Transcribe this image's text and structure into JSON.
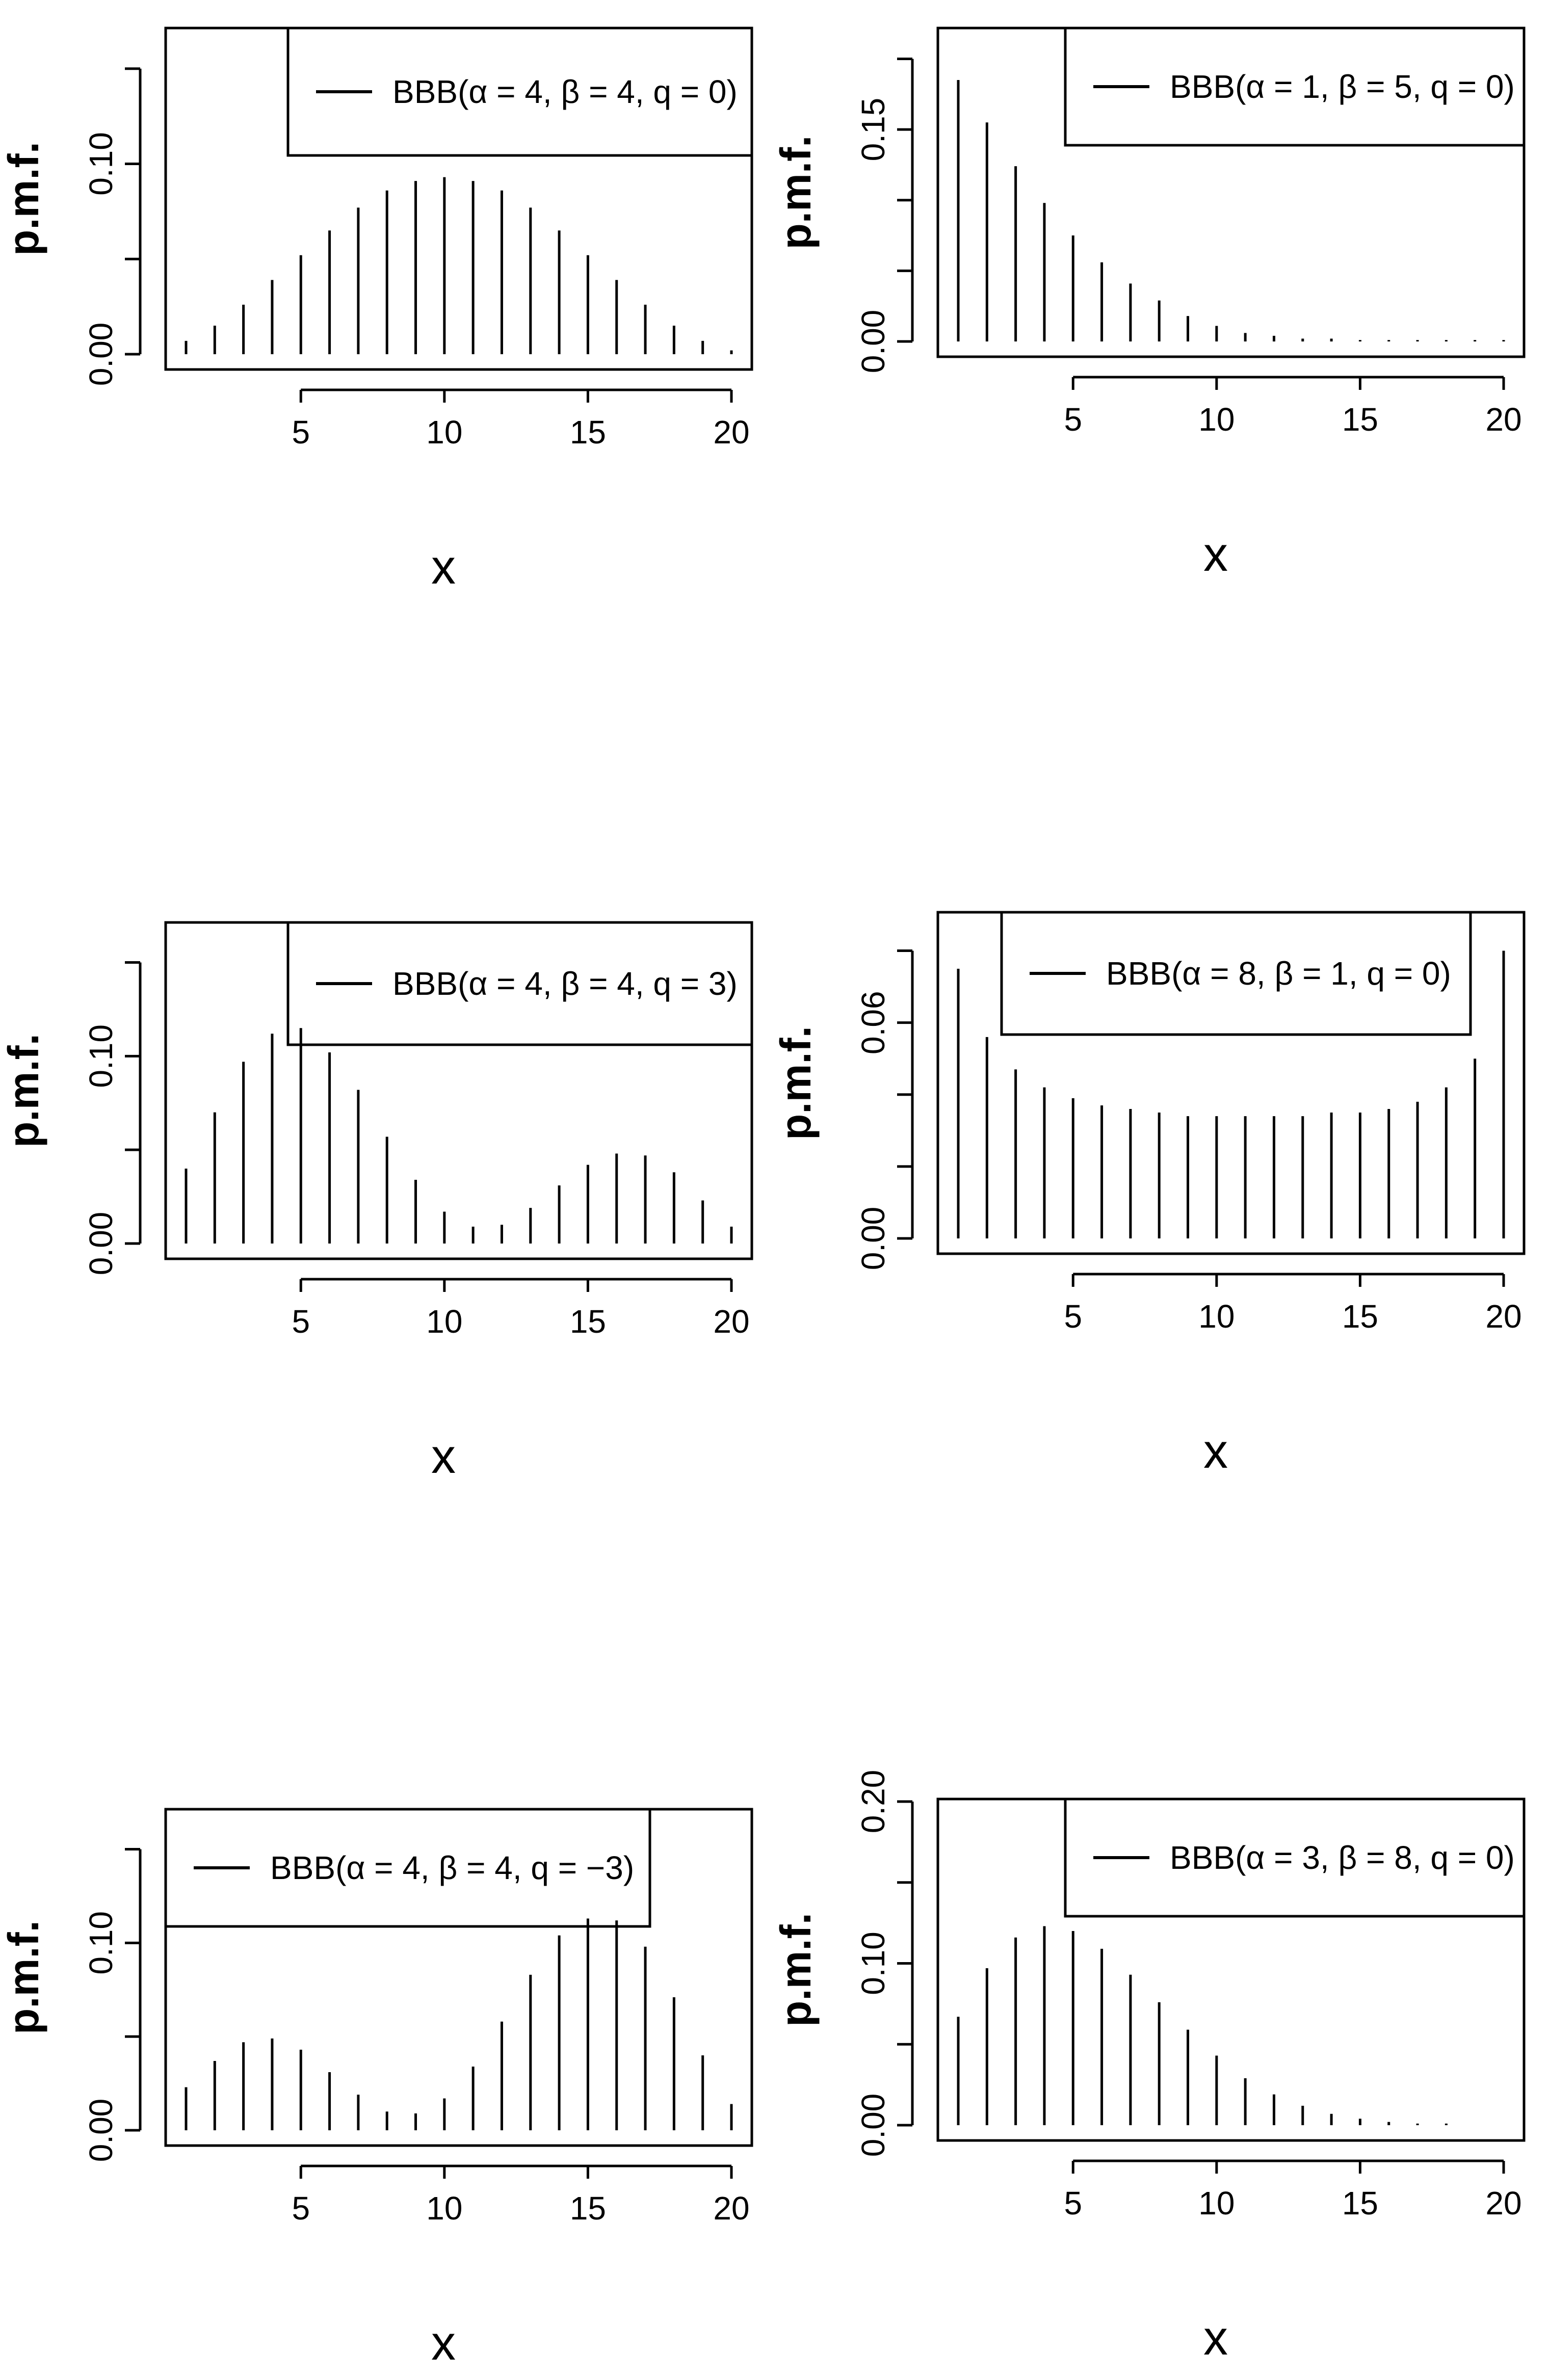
{
  "chart_data": [
    {
      "type": "bar",
      "x": [
        1,
        2,
        3,
        4,
        5,
        6,
        7,
        8,
        9,
        10,
        11,
        12,
        13,
        14,
        15,
        16,
        17,
        18,
        19,
        20
      ],
      "values": [
        0.007,
        0.015,
        0.026,
        0.039,
        0.052,
        0.065,
        0.077,
        0.086,
        0.091,
        0.093,
        0.091,
        0.086,
        0.077,
        0.065,
        0.052,
        0.039,
        0.026,
        0.015,
        0.007,
        0.002
      ],
      "xlabel": "x",
      "ylabel": "p.m.f.",
      "ylim": [
        0,
        0.17
      ],
      "yticks": [
        0,
        0.05,
        0.1,
        0.15
      ],
      "yticklabels": [
        "0.00",
        "0.10"
      ],
      "xticks": [
        "5",
        "10",
        "15",
        "20"
      ],
      "legend": {
        "label": "BBB(α = 4, β = 4, q = 0)",
        "position": "top-right"
      }
    },
    {
      "type": "bar",
      "x": [
        1,
        2,
        3,
        4,
        5,
        6,
        7,
        8,
        9,
        10,
        11,
        12,
        13,
        14,
        15,
        16,
        17,
        18,
        19,
        20
      ],
      "values": [
        0.185,
        0.155,
        0.124,
        0.098,
        0.075,
        0.056,
        0.041,
        0.029,
        0.018,
        0.011,
        0.006,
        0.004,
        0.002,
        0.002,
        0.001,
        0.001,
        0.001,
        0.001,
        0.001,
        0.001
      ],
      "xlabel": "x",
      "ylabel": "p.m.f.",
      "ylim": [
        0,
        0.22
      ],
      "yticks": [
        0,
        0.05,
        0.1,
        0.15,
        0.2
      ],
      "yticklabels": [
        "0.00",
        "0.15"
      ],
      "xticks": [
        "5",
        "10",
        "15",
        "20"
      ],
      "legend": {
        "label": "BBB(α = 1, β = 5, q = 0)",
        "position": "top-right"
      }
    },
    {
      "type": "bar",
      "x": [
        1,
        2,
        3,
        4,
        5,
        6,
        7,
        8,
        9,
        10,
        11,
        12,
        13,
        14,
        15,
        16,
        17,
        18,
        19,
        20
      ],
      "values": [
        0.04,
        0.07,
        0.097,
        0.112,
        0.115,
        0.102,
        0.082,
        0.057,
        0.034,
        0.017,
        0.009,
        0.01,
        0.019,
        0.031,
        0.042,
        0.048,
        0.047,
        0.038,
        0.023,
        0.009
      ],
      "xlabel": "x",
      "ylabel": "p.m.f.",
      "ylim": [
        0,
        0.17
      ],
      "yticks": [
        0,
        0.05,
        0.1,
        0.15
      ],
      "yticklabels": [
        "0.00",
        "0.10"
      ],
      "xticks": [
        "5",
        "10",
        "15",
        "20"
      ],
      "legend": {
        "label": "BBB(α = 4, β = 4, q = 3)",
        "position": "top-right"
      }
    },
    {
      "type": "bar",
      "x": [
        1,
        2,
        3,
        4,
        5,
        6,
        7,
        8,
        9,
        10,
        11,
        12,
        13,
        14,
        15,
        16,
        17,
        18,
        19,
        20
      ],
      "values": [
        0.075,
        0.056,
        0.047,
        0.042,
        0.039,
        0.037,
        0.036,
        0.035,
        0.034,
        0.034,
        0.034,
        0.034,
        0.034,
        0.035,
        0.035,
        0.036,
        0.038,
        0.042,
        0.05,
        0.08
      ],
      "xlabel": "x",
      "ylabel": "p.m.f.",
      "ylim": [
        0,
        0.09
      ],
      "yticks": [
        0,
        0.02,
        0.04,
        0.06,
        0.08
      ],
      "yticklabels": [
        "0.00",
        "0.06"
      ],
      "xticks": [
        "5",
        "10",
        "15",
        "20"
      ],
      "legend": {
        "label": "BBB(α = 8, β = 1, q = 0)",
        "position": "top-right"
      }
    },
    {
      "type": "bar",
      "x": [
        1,
        2,
        3,
        4,
        5,
        6,
        7,
        8,
        9,
        10,
        11,
        12,
        13,
        14,
        15,
        16,
        17,
        18,
        19,
        20
      ],
      "values": [
        0.023,
        0.037,
        0.047,
        0.049,
        0.043,
        0.031,
        0.019,
        0.01,
        0.009,
        0.017,
        0.034,
        0.058,
        0.083,
        0.104,
        0.113,
        0.112,
        0.098,
        0.071,
        0.04,
        0.014
      ],
      "xlabel": "x",
      "ylabel": "p.m.f.",
      "ylim": [
        0,
        0.17
      ],
      "yticks": [
        0,
        0.05,
        0.1,
        0.15
      ],
      "yticklabels": [
        "0.00",
        "0.10"
      ],
      "xticks": [
        "5",
        "10",
        "15",
        "20"
      ],
      "legend": {
        "label": "BBB(α = 4, β = 4, q = −3)",
        "position": "top-left"
      }
    },
    {
      "type": "bar",
      "x": [
        1,
        2,
        3,
        4,
        5,
        6,
        7,
        8,
        9,
        10,
        11,
        12,
        13,
        14,
        15,
        16,
        17,
        18,
        19,
        20
      ],
      "values": [
        0.067,
        0.097,
        0.116,
        0.123,
        0.12,
        0.109,
        0.093,
        0.076,
        0.059,
        0.043,
        0.029,
        0.019,
        0.012,
        0.007,
        0.004,
        0.002,
        0.001,
        0.001,
        0.0,
        0.0
      ],
      "xlabel": "x",
      "ylabel": "p.m.f.",
      "ylim": [
        0,
        0.2
      ],
      "yticks": [
        0,
        0.05,
        0.1,
        0.15,
        0.2
      ],
      "yticklabels": [
        "0.00",
        "0.10",
        "0.20"
      ],
      "xticks": [
        "5",
        "10",
        "15",
        "20"
      ],
      "legend": {
        "label": "BBB(α = 3, β = 8, q = 0)",
        "position": "top-right"
      }
    }
  ]
}
